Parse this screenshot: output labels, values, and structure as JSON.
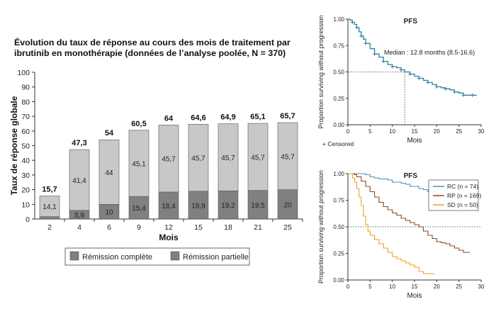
{
  "figure_title": {
    "line1": "Évolution du taux de réponse au cours des mois de traitement par",
    "line2": "ibrutinib en monothérapie (données de l’analyse poolée, N = 370)"
  },
  "chart_data": [
    {
      "type": "bar",
      "stacked": true,
      "xlabel": "Mois",
      "ylabel": "Taux de réponse globale",
      "ylim": [
        0,
        100
      ],
      "yticks": [
        0,
        10,
        20,
        30,
        40,
        50,
        60,
        70,
        80,
        90,
        100
      ],
      "categories": [
        "2",
        "4",
        "6",
        "9",
        "12",
        "15",
        "18",
        "21",
        "25"
      ],
      "series": [
        {
          "name": "Rémission complète",
          "color": "#c8c8c8",
          "values": [
            1.6,
            5.9,
            10,
            15.4,
            18.4,
            18.9,
            19.2,
            19.5,
            20
          ],
          "labels": [
            "",
            "5,9",
            "10",
            "15,4",
            "18,4",
            "18,9",
            "19,2",
            "19,5",
            "20"
          ]
        },
        {
          "name": "Rémission partielle",
          "color": "#808080",
          "values": [
            14.1,
            41.4,
            44,
            45.1,
            45.7,
            45.7,
            45.7,
            45.7,
            45.7
          ],
          "labels": [
            "14,1",
            "41,4",
            "44",
            "45,1",
            "45,7",
            "45,7",
            "45,7",
            "45,7",
            "45,7"
          ]
        }
      ],
      "totals": [
        "15,7",
        "47,3",
        "54",
        "60,5",
        "64",
        "64,6",
        "64,9",
        "65,1",
        "65,7"
      ],
      "legend": [
        "Rémission complète",
        "Rémission partielle"
      ],
      "legend_position": "bottom",
      "grid": false
    },
    {
      "type": "line",
      "title": "PFS",
      "xlabel": "Mois",
      "ylabel": "Proportion surviving without progression",
      "xlim": [
        0,
        30
      ],
      "ylim": [
        0,
        1.0
      ],
      "xticks": [
        0,
        5,
        10,
        15,
        20,
        25,
        30
      ],
      "yticks": [
        "0.00",
        "0.25",
        "0.50",
        "0.75",
        "1.00"
      ],
      "annotation": "Median : 12.8 months (8.5-16.6)",
      "median": 12.8,
      "censor_note": "+ Censored",
      "series": [
        {
          "name": "PFS",
          "color": "#2f7fa0",
          "x": [
            0,
            0.5,
            1,
            1.5,
            2,
            2.5,
            3,
            3.5,
            4,
            5,
            6,
            7,
            8,
            9,
            10,
            11,
            12,
            12.8,
            14,
            15,
            16,
            17,
            18,
            19,
            20,
            21,
            22,
            23,
            24,
            25,
            26,
            27,
            28,
            29
          ],
          "y": [
            1.0,
            0.99,
            0.97,
            0.95,
            0.92,
            0.88,
            0.84,
            0.81,
            0.77,
            0.72,
            0.67,
            0.64,
            0.6,
            0.57,
            0.55,
            0.54,
            0.52,
            0.5,
            0.48,
            0.46,
            0.44,
            0.42,
            0.4,
            0.38,
            0.36,
            0.35,
            0.34,
            0.33,
            0.31,
            0.3,
            0.28,
            0.28,
            0.28,
            0.28
          ]
        }
      ]
    },
    {
      "type": "line",
      "title": "PFS",
      "xlabel": "Mois",
      "ylabel": "Proportion surviving without progression",
      "xlim": [
        0,
        30
      ],
      "ylim": [
        0,
        1.0
      ],
      "xticks": [
        0,
        5,
        10,
        15,
        20,
        25,
        30
      ],
      "yticks": [
        "0.00",
        "0.25",
        "0.50",
        "0.75",
        "1.00"
      ],
      "legend_position": "top-right",
      "series": [
        {
          "name": "RC (n = 74)",
          "color": "#4a90b8",
          "x": [
            0,
            3,
            4,
            5,
            6,
            7,
            9,
            10,
            12,
            13,
            14,
            16,
            17,
            18,
            19,
            21,
            22,
            23,
            24,
            25,
            27.5
          ],
          "y": [
            1.0,
            1.0,
            0.99,
            0.97,
            0.96,
            0.95,
            0.94,
            0.92,
            0.91,
            0.9,
            0.88,
            0.86,
            0.85,
            0.83,
            0.8,
            0.76,
            0.72,
            0.71,
            0.7,
            0.69,
            0.69
          ]
        },
        {
          "name": "RP (n = 169)",
          "color": "#8a4a20",
          "x": [
            0,
            1.5,
            2,
            3,
            4,
            5,
            6,
            7,
            8,
            9,
            10,
            11,
            12,
            13,
            14,
            15,
            16,
            17,
            18,
            19,
            20,
            21,
            22,
            23,
            24,
            25,
            26,
            27.5
          ],
          "y": [
            1.0,
            0.99,
            0.97,
            0.93,
            0.88,
            0.83,
            0.78,
            0.73,
            0.69,
            0.66,
            0.63,
            0.61,
            0.58,
            0.56,
            0.54,
            0.52,
            0.5,
            0.46,
            0.42,
            0.39,
            0.36,
            0.35,
            0.34,
            0.32,
            0.3,
            0.28,
            0.26,
            0.26
          ]
        },
        {
          "name": "SD (n = 50)",
          "color": "#f0a020",
          "x": [
            0,
            1,
            1.5,
            2,
            2.5,
            3,
            3.5,
            4,
            4.5,
            5,
            6,
            7,
            8,
            9,
            10,
            11,
            12,
            13,
            14,
            15,
            16,
            17,
            18,
            19.5
          ],
          "y": [
            1.0,
            0.96,
            0.92,
            0.86,
            0.78,
            0.7,
            0.6,
            0.52,
            0.46,
            0.42,
            0.38,
            0.34,
            0.3,
            0.26,
            0.22,
            0.2,
            0.18,
            0.16,
            0.14,
            0.12,
            0.08,
            0.06,
            0.06,
            0.06
          ]
        }
      ]
    }
  ]
}
